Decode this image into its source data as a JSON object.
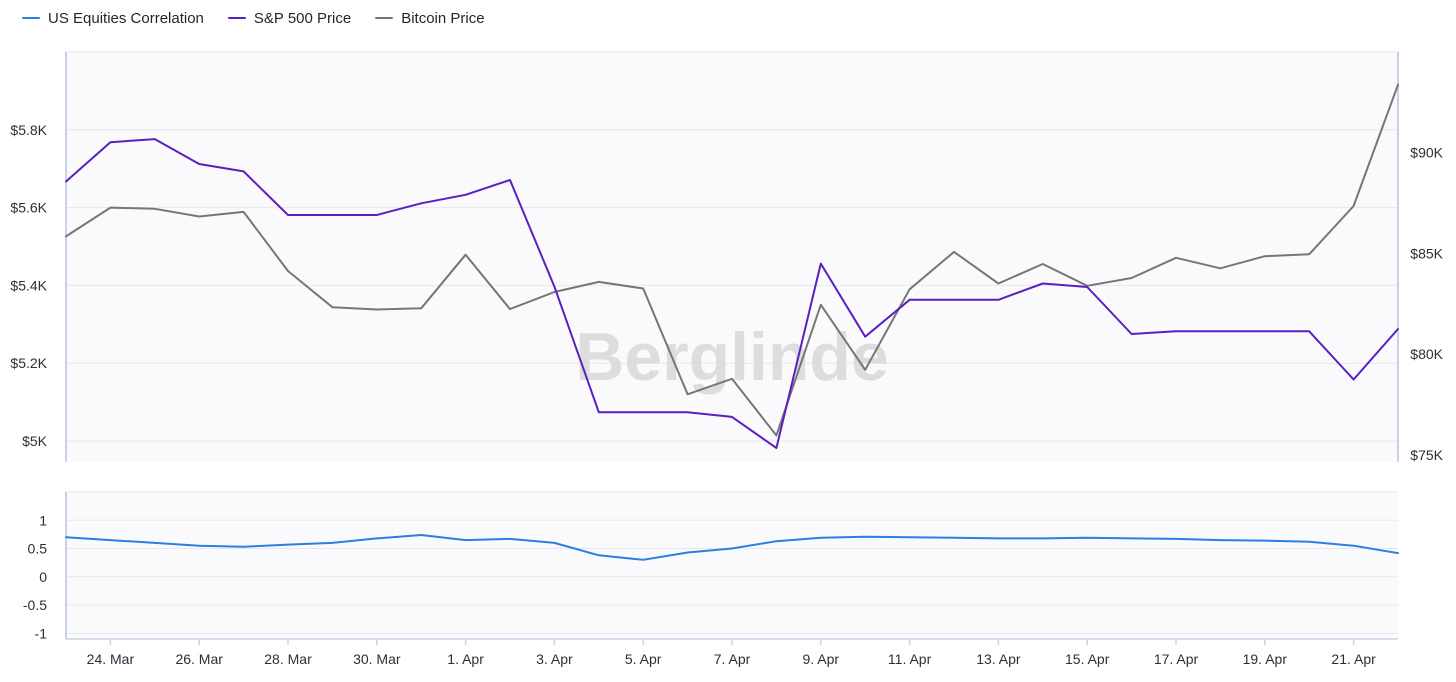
{
  "legend": {
    "correlation_label": "US Equities Correlation",
    "sp500_label": "S&P 500 Price",
    "bitcoin_label": "Bitcoin Price"
  },
  "watermark": "Berglinde",
  "colors": {
    "correlation": "#2a7fe0",
    "sp500": "#5b1ec2",
    "bitcoin": "#767676",
    "grid": "#e6e8ee",
    "axis": "#c9d2ea",
    "panel_bg": "#fafafc"
  },
  "chart_data": {
    "type": "line",
    "x": [
      "23. Mar",
      "24. Mar",
      "25. Mar",
      "26. Mar",
      "27. Mar",
      "28. Mar",
      "29. Mar",
      "30. Mar",
      "31. Mar",
      "1. Apr",
      "2. Apr",
      "3. Apr",
      "4. Apr",
      "5. Apr",
      "6. Apr",
      "7. Apr",
      "8. Apr",
      "9. Apr",
      "10. Apr",
      "11. Apr",
      "12. Apr",
      "13. Apr",
      "14. Apr",
      "15. Apr",
      "16. Apr",
      "17. Apr",
      "18. Apr",
      "19. Apr",
      "20. Apr",
      "21. Apr",
      "22. Apr"
    ],
    "xticks": [
      "24. Mar",
      "26. Mar",
      "28. Mar",
      "30. Mar",
      "1. Apr",
      "3. Apr",
      "5. Apr",
      "7. Apr",
      "9. Apr",
      "11. Apr",
      "13. Apr",
      "15. Apr",
      "17. Apr",
      "19. Apr",
      "21. Apr"
    ],
    "price_panel": {
      "left_axis": {
        "ticks": [
          5000,
          5200,
          5400,
          5600,
          5800
        ],
        "tick_labels": [
          "$5K",
          "$5.2K",
          "$5.4K",
          "$5.6K",
          "$5.8K"
        ],
        "range": [
          4946,
          6000
        ]
      },
      "right_axis": {
        "ticks": [
          75000,
          80000,
          85000,
          90000
        ],
        "tick_labels": [
          "$75K",
          "$80K",
          "$85K",
          "$90K"
        ],
        "range": [
          74650,
          95000
        ]
      },
      "series": [
        {
          "name": "S&P 500 Price",
          "axis": "left",
          "values": [
            5667,
            5768,
            5776,
            5712,
            5693,
            5581,
            5581,
            5581,
            5611,
            5633,
            5671,
            5397,
            5074,
            5074,
            5074,
            5062,
            4982,
            5456,
            5268,
            5363,
            5363,
            5363,
            5405,
            5396,
            5275,
            5282,
            5282,
            5282,
            5282,
            5158,
            5288
          ]
        },
        {
          "name": "Bitcoin Price",
          "axis": "left",
          "values": [
            5526,
            5600,
            5597,
            5577,
            5589,
            5437,
            5344,
            5338,
            5341,
            5479,
            5339,
            5383,
            5409,
            5392,
            5120,
            5160,
            5014,
            5350,
            5183,
            5390,
            5486,
            5405,
            5455,
            5399,
            5419,
            5471,
            5444,
            5475,
            5480,
            5604,
            5916
          ]
        },
        {
          "name": "US Equities Correlation",
          "axis": "correlation",
          "values": [
            0.7,
            0.65,
            0.6,
            0.55,
            0.53,
            0.57,
            0.6,
            0.68,
            0.74,
            0.65,
            0.67,
            0.6,
            0.38,
            0.3,
            0.43,
            0.5,
            0.63,
            0.69,
            0.71,
            0.7,
            0.69,
            0.68,
            0.68,
            0.69,
            0.68,
            0.67,
            0.65,
            0.64,
            0.62,
            0.55,
            0.42
          ]
        }
      ]
    },
    "correlation_panel": {
      "ticks": [
        -1,
        -0.5,
        0,
        0.5,
        1
      ],
      "tick_labels": [
        "-1",
        "-0.5",
        "0",
        "0.5",
        "1"
      ],
      "range": [
        -1.1,
        1.5
      ]
    },
    "grid": true,
    "legend_position": "top-left"
  }
}
